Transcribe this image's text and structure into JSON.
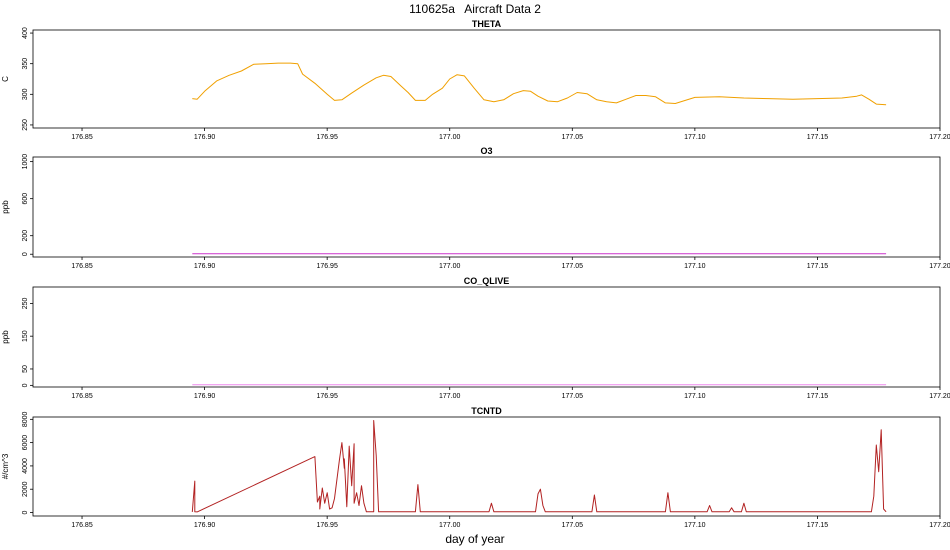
{
  "page": {
    "title": "110625a   Aircraft Data 2",
    "xlabel": "day of year"
  },
  "chart_data": [
    {
      "type": "line",
      "title": "THETA",
      "ylabel": "C",
      "color": "#f0a000",
      "xlim": [
        176.83,
        177.2
      ],
      "ylim": [
        245,
        405
      ],
      "yticks": [
        250,
        300,
        350,
        400
      ],
      "xticks": [
        176.85,
        176.9,
        176.95,
        177.0,
        177.05,
        177.1,
        177.15,
        177.2
      ],
      "xticklabels": [
        "176.85",
        "176.90",
        "176.95",
        "177.00",
        "177.05",
        "177.10",
        "177.15",
        "177.20"
      ],
      "x": [
        176.895,
        176.897,
        176.9,
        176.905,
        176.91,
        176.915,
        176.92,
        176.925,
        176.93,
        176.935,
        176.938,
        176.94,
        176.945,
        176.95,
        176.953,
        176.956,
        176.96,
        176.965,
        176.97,
        176.973,
        176.976,
        176.98,
        176.983,
        176.986,
        176.99,
        176.993,
        176.997,
        177.0,
        177.003,
        177.006,
        177.01,
        177.014,
        177.018,
        177.022,
        177.026,
        177.03,
        177.033,
        177.036,
        177.04,
        177.044,
        177.048,
        177.052,
        177.056,
        177.06,
        177.064,
        177.068,
        177.072,
        177.076,
        177.08,
        177.084,
        177.088,
        177.092,
        177.1,
        177.11,
        177.12,
        177.13,
        177.14,
        177.15,
        177.16,
        177.166,
        177.168,
        177.171,
        177.174,
        177.178
      ],
      "y": [
        293,
        292,
        305,
        322,
        331,
        338,
        349,
        350,
        351,
        351,
        350,
        333,
        318,
        300,
        290,
        291,
        302,
        315,
        327,
        331,
        329,
        314,
        303,
        290,
        290,
        300,
        310,
        325,
        332,
        330,
        310,
        291,
        288,
        291,
        301,
        306,
        305,
        297,
        289,
        288,
        294,
        303,
        301,
        291,
        288,
        286,
        292,
        298,
        298,
        296,
        286,
        285,
        295,
        296,
        294,
        293,
        292,
        293,
        294,
        297,
        299,
        292,
        284,
        283
      ]
    },
    {
      "type": "line",
      "title": "O3",
      "ylabel": "ppb",
      "color": "#cc33cc",
      "xlim": [
        176.83,
        177.2
      ],
      "ylim": [
        -30,
        1050
      ],
      "yticks": [
        0,
        200,
        600,
        1000
      ],
      "xticks": [
        176.85,
        176.9,
        176.95,
        177.0,
        177.05,
        177.1,
        177.15,
        177.2
      ],
      "xticklabels": [
        "176.85",
        "176.90",
        "176.95",
        "177.00",
        "177.05",
        "177.10",
        "177.15",
        "177.20"
      ],
      "x": [
        176.895,
        177.178
      ],
      "y": [
        5,
        5
      ]
    },
    {
      "type": "line",
      "title": "CO_QLIVE",
      "ylabel": "ppb",
      "color": "#ee88ee",
      "xlim": [
        176.83,
        177.2
      ],
      "ylim": [
        -5,
        300
      ],
      "yticks": [
        0,
        50,
        150,
        250
      ],
      "xticks": [
        176.85,
        176.9,
        176.95,
        177.0,
        177.05,
        177.1,
        177.15,
        177.2
      ],
      "xticklabels": [
        "176.85",
        "176.90",
        "176.95",
        "177.00",
        "177.05",
        "177.10",
        "177.15",
        "177.20"
      ],
      "x": [
        176.895,
        177.178
      ],
      "y": [
        2,
        2
      ]
    },
    {
      "type": "line",
      "title": "TCNTD",
      "ylabel": "#/cm^3",
      "color": "#b22222",
      "xlim": [
        176.83,
        177.2
      ],
      "ylim": [
        -300,
        8200
      ],
      "yticks": [
        0,
        2000,
        4000,
        6000,
        8000
      ],
      "xticks": [
        176.85,
        176.9,
        176.95,
        177.0,
        177.05,
        177.1,
        177.15,
        177.2
      ],
      "xticklabels": [
        "176.85",
        "176.90",
        "176.95",
        "177.00",
        "177.05",
        "177.10",
        "177.15",
        "177.20"
      ],
      "x": [
        176.895,
        176.896,
        176.896,
        176.897,
        176.945,
        176.946,
        176.947,
        176.947,
        176.948,
        176.949,
        176.95,
        176.951,
        176.952,
        176.953,
        176.955,
        176.956,
        176.957,
        176.957,
        176.958,
        176.959,
        176.96,
        176.961,
        176.961,
        176.962,
        176.963,
        176.964,
        176.965,
        176.966,
        176.969,
        176.969,
        176.97,
        176.971,
        176.986,
        176.987,
        176.988,
        177.016,
        177.017,
        177.018,
        177.035,
        177.036,
        177.037,
        177.038,
        177.039,
        177.058,
        177.059,
        177.06,
        177.088,
        177.089,
        177.09,
        177.105,
        177.106,
        177.107,
        177.114,
        177.115,
        177.116,
        177.119,
        177.12,
        177.121,
        177.172,
        177.173,
        177.174,
        177.175,
        177.176,
        177.177,
        177.178
      ],
      "y": [
        50,
        2700,
        60,
        50,
        4800,
        900,
        1400,
        300,
        2100,
        800,
        1700,
        300,
        400,
        1200,
        4500,
        6000,
        3800,
        4600,
        500,
        5700,
        2300,
        5900,
        800,
        1700,
        600,
        2300,
        800,
        60,
        60,
        7900,
        4900,
        60,
        60,
        2400,
        60,
        60,
        800,
        60,
        60,
        1600,
        2000,
        600,
        60,
        60,
        1500,
        60,
        60,
        1700,
        60,
        60,
        600,
        60,
        60,
        400,
        60,
        60,
        800,
        60,
        60,
        1400,
        5800,
        3500,
        7100,
        300,
        60
      ]
    }
  ]
}
